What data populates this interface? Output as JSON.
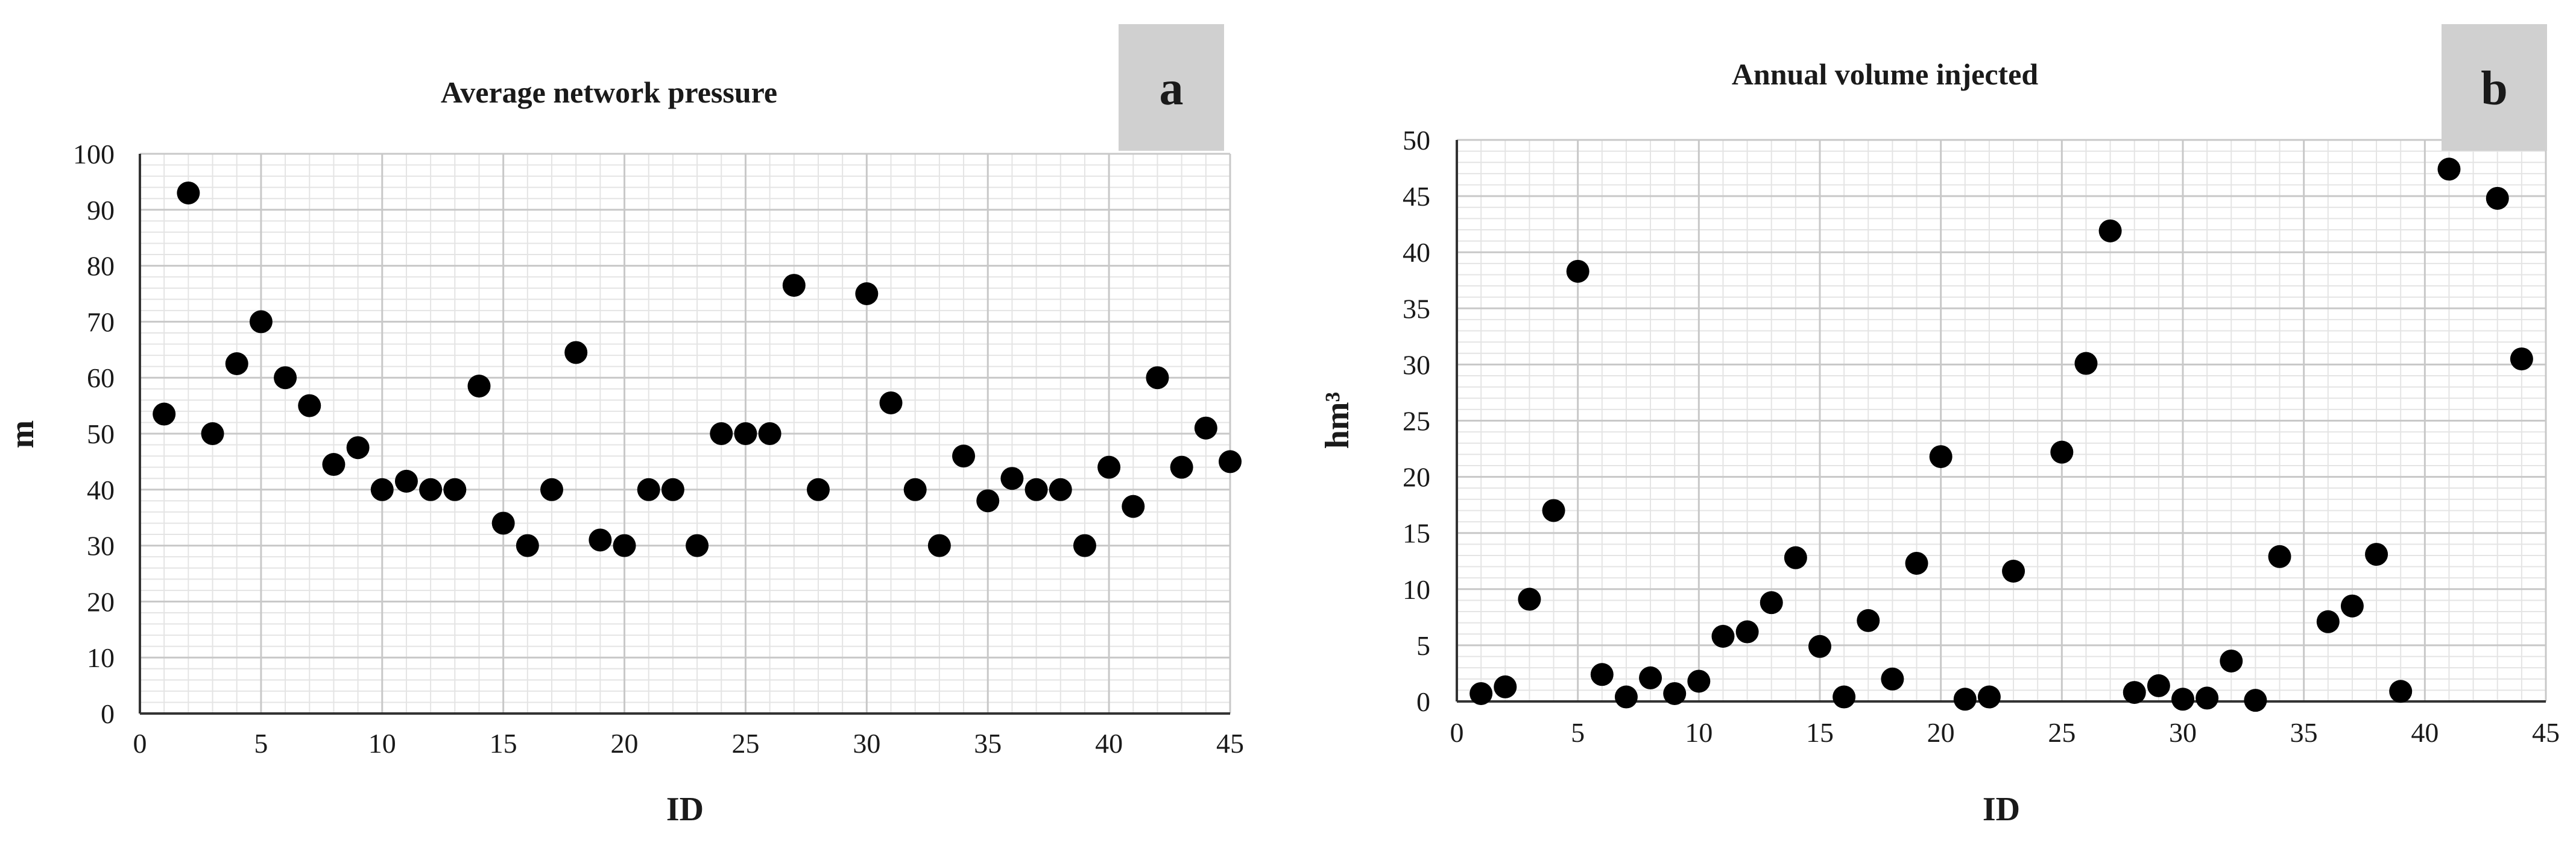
{
  "colors": {
    "marker": "#000000",
    "grid_major": "#c8c8c8",
    "grid_minor": "#e4e4e4",
    "badge_bg": "#d0d0d0",
    "axis": "#333333"
  },
  "chart_data": [
    {
      "type": "scatter",
      "panel_label": "a",
      "title": "Average network pressure",
      "xlabel": "ID",
      "ylabel": "m",
      "xlim": [
        0,
        45
      ],
      "ylim": [
        0,
        100
      ],
      "xticks": [
        0,
        5,
        10,
        15,
        20,
        25,
        30,
        35,
        40,
        45
      ],
      "yticks": [
        0,
        10,
        20,
        30,
        40,
        50,
        60,
        70,
        80,
        90,
        100
      ],
      "grid": true,
      "legend": "none",
      "series": [
        {
          "x": [
            1,
            2,
            3,
            4,
            5,
            6,
            7,
            8,
            9,
            10,
            11,
            12,
            13,
            14,
            15,
            16,
            17,
            18,
            19,
            20,
            21,
            22,
            23,
            24,
            25,
            26,
            27,
            28,
            30,
            31,
            32,
            33,
            34,
            35,
            36,
            37,
            38,
            39,
            40,
            41,
            42,
            43,
            44,
            45
          ],
          "y": [
            53.5,
            93,
            50,
            62.5,
            70,
            60,
            55,
            44.5,
            47.5,
            40,
            41.5,
            40,
            40,
            58.5,
            34,
            30,
            40,
            64.5,
            31,
            30,
            40,
            40,
            30,
            50,
            50,
            50,
            76.5,
            40,
            75,
            55.5,
            40,
            30,
            46,
            38,
            42,
            40,
            40,
            30,
            44,
            37,
            60,
            44,
            51,
            45
          ]
        }
      ]
    },
    {
      "type": "scatter",
      "panel_label": "b",
      "title": "Annual volume injected",
      "xlabel": "ID",
      "ylabel": "hm³",
      "xlim": [
        0,
        45
      ],
      "ylim": [
        0,
        50
      ],
      "xticks": [
        0,
        5,
        10,
        15,
        20,
        25,
        30,
        35,
        40,
        45
      ],
      "yticks": [
        0,
        5,
        10,
        15,
        20,
        25,
        30,
        35,
        40,
        45,
        50
      ],
      "grid": true,
      "legend": "none",
      "series": [
        {
          "x": [
            1,
            2,
            3,
            4,
            5,
            6,
            7,
            8,
            9,
            10,
            11,
            12,
            13,
            14,
            15,
            16,
            17,
            18,
            19,
            20,
            21,
            22,
            23,
            25,
            26,
            27,
            28,
            29,
            30,
            31,
            32,
            33,
            34,
            36,
            37,
            38,
            39,
            41,
            43,
            44
          ],
          "y": [
            0.7,
            1.3,
            9.1,
            17,
            38.3,
            2.4,
            0.4,
            2.1,
            0.7,
            1.8,
            5.8,
            6.2,
            8.8,
            12.8,
            4.9,
            0.4,
            7.2,
            2,
            12.3,
            21.8,
            0.2,
            0.4,
            11.6,
            22.2,
            30.1,
            41.9,
            0.8,
            1.4,
            0.2,
            0.3,
            3.6,
            0.1,
            12.9,
            7.1,
            8.5,
            13.1,
            0.9,
            47.4,
            44.8,
            30.5
          ]
        }
      ]
    }
  ]
}
